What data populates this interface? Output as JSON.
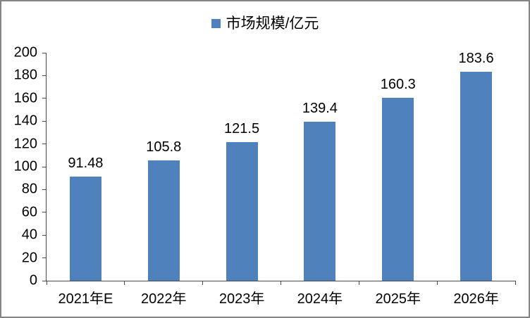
{
  "chart_data": {
    "type": "bar",
    "title": "",
    "legend": "市场规模/亿元",
    "legend_position": "top",
    "categories": [
      "2021年E",
      "2022年",
      "2023年",
      "2024年",
      "2025年",
      "2026年"
    ],
    "values": [
      91.48,
      105.8,
      121.5,
      139.4,
      160.3,
      183.6
    ],
    "value_labels": [
      "91.48",
      "105.8",
      "121.5",
      "139.4",
      "160.3",
      "183.6"
    ],
    "xlabel": "",
    "ylabel": "",
    "ylim": [
      0,
      200
    ],
    "ytick_step": 20,
    "yticks": [
      0,
      20,
      40,
      60,
      80,
      100,
      120,
      140,
      160,
      180,
      200
    ],
    "grid": false,
    "colors": {
      "bar": "#4F81BD",
      "axis": "#4a4a4a",
      "text": "#000000",
      "border": "#858585",
      "background": "#FFFFFF"
    }
  }
}
